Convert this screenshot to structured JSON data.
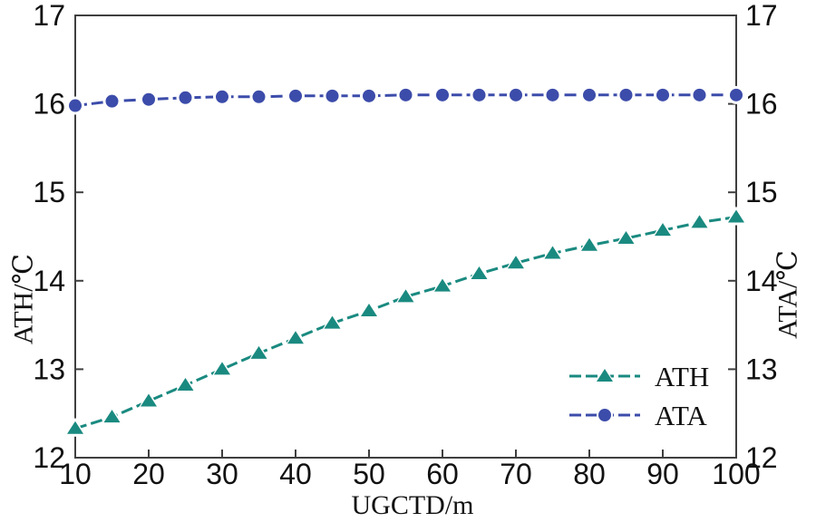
{
  "figure": {
    "background": "#ffffff",
    "axis_color": "#3f3f3f",
    "text_color": "#111111"
  },
  "chart_data": {
    "type": "line",
    "title": "",
    "xlabel": "UGCTD/m",
    "ylabel_left": "ATH/℃",
    "ylabel_right": "ATA/℃",
    "xlim": [
      10,
      100
    ],
    "ylim": [
      12,
      17
    ],
    "xticks": [
      10,
      20,
      30,
      40,
      50,
      60,
      70,
      80,
      90,
      100
    ],
    "yticks_left": [
      12,
      13,
      14,
      15,
      16,
      17
    ],
    "yticks_right": [
      12,
      13,
      14,
      15,
      16,
      17
    ],
    "grid": false,
    "legend_position": "lower right",
    "x": [
      10,
      15,
      20,
      25,
      30,
      35,
      40,
      45,
      50,
      55,
      60,
      65,
      70,
      75,
      80,
      85,
      90,
      95,
      100
    ],
    "series": [
      {
        "name": "ATH",
        "axis": "left",
        "color": "#1a8a80",
        "marker": "triangle",
        "line_style": "dashed",
        "values": [
          12.33,
          12.46,
          12.64,
          12.82,
          13.0,
          13.18,
          13.35,
          13.52,
          13.66,
          13.82,
          13.94,
          14.08,
          14.2,
          14.31,
          14.4,
          14.48,
          14.57,
          14.66,
          14.72
        ]
      },
      {
        "name": "ATA",
        "axis": "right",
        "color": "#3c4caa",
        "marker": "circle",
        "line_style": "dashed",
        "values": [
          15.98,
          16.03,
          16.05,
          16.07,
          16.08,
          16.08,
          16.09,
          16.09,
          16.09,
          16.1,
          16.1,
          16.1,
          16.1,
          16.1,
          16.1,
          16.1,
          16.1,
          16.1,
          16.1
        ]
      }
    ]
  }
}
